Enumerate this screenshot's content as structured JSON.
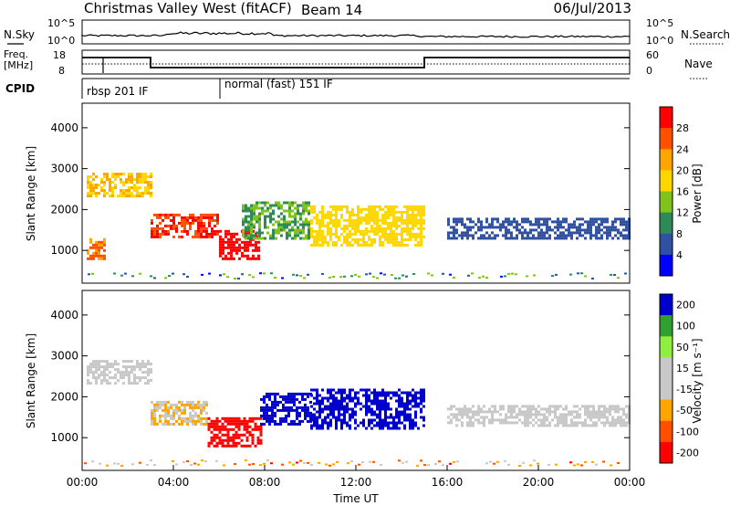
{
  "header": {
    "station": "Christmas Valley West (fitACF)",
    "beam": "Beam 14",
    "date": "06/Jul/2013"
  },
  "noise_panel": {
    "left_label": "N.Sky",
    "right_label": "N.Search",
    "left_ticks": [
      "10^5",
      "10^0"
    ],
    "right_ticks": [
      "10^5",
      "10^0"
    ]
  },
  "freq_panel": {
    "left_label_1": "Freq.",
    "left_label_2": "[MHz]",
    "right_label": "Nave",
    "left_ticks": [
      "18",
      "8"
    ],
    "right_ticks": [
      "60",
      "0"
    ]
  },
  "cpid_panel": {
    "label": "CPID",
    "mode_1": "rbsp 201 IF",
    "mode_2": "normal (fast) 151 IF"
  },
  "colors": {
    "power_scale": [
      "#0000ff",
      "#3050a0",
      "#2e8b57",
      "#7fc31c",
      "#ffd700",
      "#ffa500",
      "#ff5000",
      "#ff0000"
    ],
    "velocity_scale": [
      "#ff0000",
      "#ff5000",
      "#ffa500",
      "#c8c8c8",
      "#c8c8c8",
      "#90ee40",
      "#30a030",
      "#0000cc"
    ]
  },
  "chart_data": [
    {
      "type": "heatmap",
      "name": "power",
      "ylabel": "Slant Range [km]",
      "ylim": [
        200,
        4600
      ],
      "yticks": [
        "1000",
        "2000",
        "3000",
        "4000"
      ],
      "xlim": [
        0,
        24
      ],
      "colorbar_label": "Power [dB]",
      "colorbar_ticks": [
        "4",
        "8",
        "12",
        "16",
        "20",
        "24",
        "28"
      ],
      "colorbar_range": [
        0,
        32
      ],
      "patches": [
        {
          "t0": 0.2,
          "t1": 3.0,
          "r0": 2300,
          "r1": 2900,
          "value": 20
        },
        {
          "t0": 0.2,
          "t1": 1.0,
          "r0": 800,
          "r1": 1300,
          "value": 24
        },
        {
          "t0": 3.0,
          "t1": 6.0,
          "r0": 1300,
          "r1": 1900,
          "value": 28
        },
        {
          "t0": 6.0,
          "t1": 7.8,
          "r0": 800,
          "r1": 1500,
          "value": 30
        },
        {
          "t0": 7.0,
          "t1": 10.0,
          "r0": 1300,
          "r1": 2200,
          "value": 12
        },
        {
          "t0": 10.0,
          "t1": 15.0,
          "r0": 1100,
          "r1": 2100,
          "value": 18
        },
        {
          "t0": 16.0,
          "t1": 24.0,
          "r0": 1300,
          "r1": 1800,
          "value": 6
        }
      ]
    },
    {
      "type": "heatmap",
      "name": "velocity",
      "ylabel": "Slant Range [km]",
      "ylim": [
        200,
        4600
      ],
      "yticks": [
        "1000",
        "2000",
        "3000",
        "4000"
      ],
      "xlabel": "Time UT",
      "xticks": [
        "00:00",
        "04:00",
        "08:00",
        "12:00",
        "16:00",
        "20:00",
        "00:00"
      ],
      "xlim": [
        0,
        24
      ],
      "colorbar_label": "Velocity [m s⁻¹]",
      "colorbar_ticks": [
        "200",
        "100",
        "50",
        "15",
        "-15",
        "-50",
        "-100",
        "-200"
      ],
      "colorbar_range": [
        -250,
        250
      ],
      "patches": [
        {
          "t0": 0.2,
          "t1": 3.0,
          "r0": 2300,
          "r1": 2900,
          "value": 0
        },
        {
          "t0": 3.0,
          "t1": 5.5,
          "r0": 1300,
          "r1": 1900,
          "value": -60
        },
        {
          "t0": 5.5,
          "t1": 7.8,
          "r0": 800,
          "r1": 1500,
          "value": -220
        },
        {
          "t0": 7.8,
          "t1": 10.0,
          "r0": 1300,
          "r1": 2100,
          "value": 220
        },
        {
          "t0": 10.0,
          "t1": 15.0,
          "r0": 1200,
          "r1": 2200,
          "value": 230
        },
        {
          "t0": 16.0,
          "t1": 24.0,
          "r0": 1300,
          "r1": 1800,
          "value": 0
        }
      ]
    }
  ]
}
